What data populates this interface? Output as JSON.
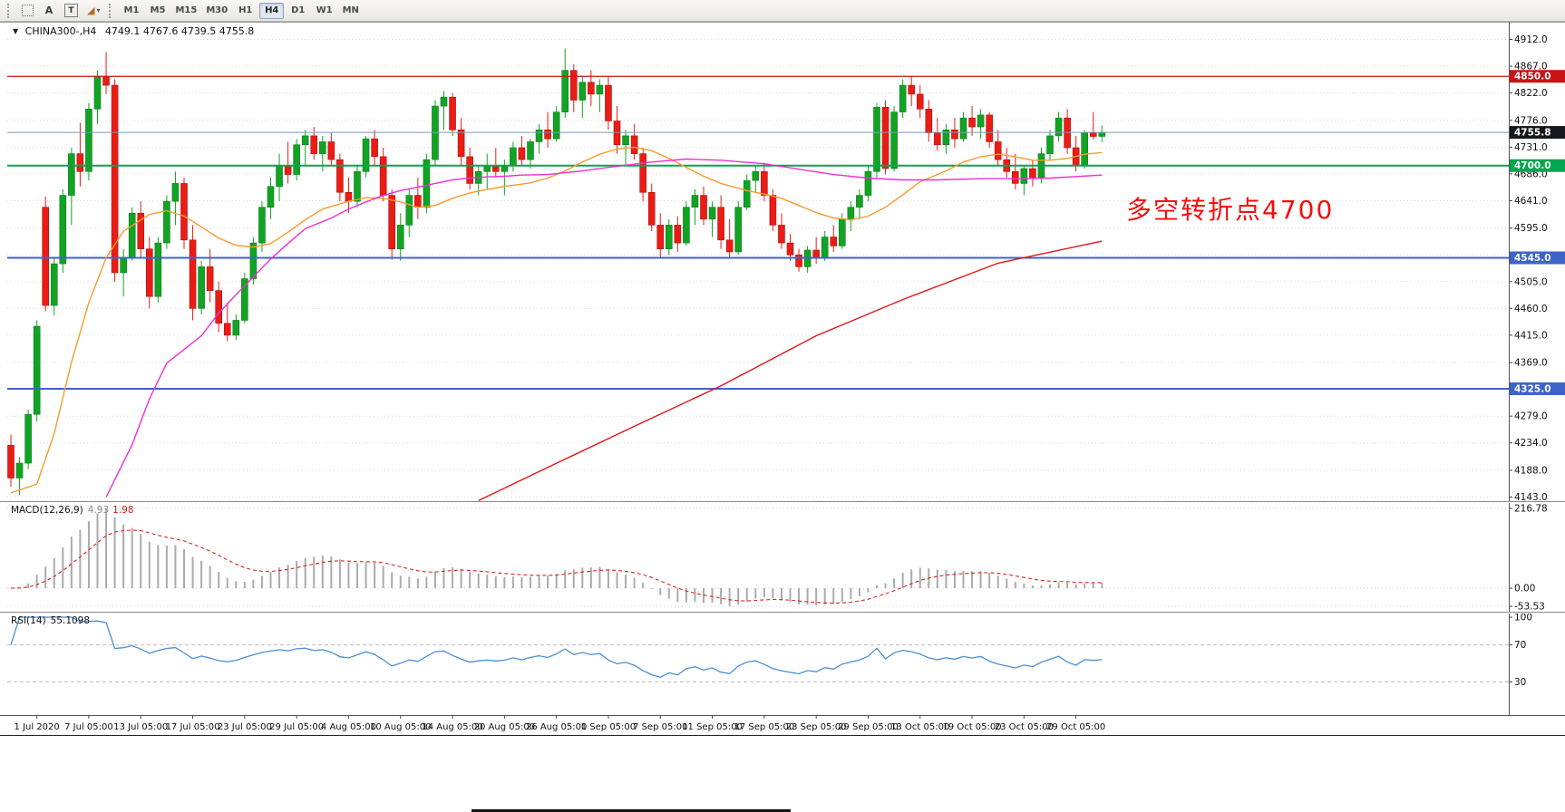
{
  "window": {
    "app": "MetaTrader chart window"
  },
  "icons": {
    "collapse": "▼",
    "caret": "▾",
    "shapes_glyph": "◢"
  },
  "toolbar": {
    "text_tool": "A",
    "label_tool": "T",
    "timeframes": [
      "M1",
      "M5",
      "M15",
      "M30",
      "H1",
      "H4",
      "D1",
      "W1",
      "MN"
    ],
    "active_timeframe": "H4"
  },
  "chart": {
    "title": "CHINA300-,H4",
    "ohlc": "4749.1 4767.6 4739.5 4755.8",
    "annotation": "多空转折点4700",
    "annotation_color": "#f60d0d"
  },
  "macd_label": {
    "name": "MACD(12,26,9)",
    "value": "4.93",
    "signal": "1.98"
  },
  "rsi_label": {
    "name": "RSI(14)",
    "value": "55.1098"
  },
  "chart_data": {
    "type": "candlestick",
    "symbol": "CHINA300-",
    "period": "H4",
    "current_ohlc": {
      "open": 4749.1,
      "high": 4767.6,
      "low": 4739.5,
      "close": 4755.8
    },
    "y_axis": {
      "min": 4143.0,
      "max": 4912.0,
      "labels": [
        4912.0,
        4867.0,
        4822.0,
        4776.0,
        4731.0,
        4686.0,
        4641.0,
        4595.0,
        4550.0,
        4505.0,
        4460.0,
        4415.0,
        4369.0,
        4324.0,
        4279.0,
        4234.0,
        4188.0,
        4143.0
      ]
    },
    "x_labels": [
      "1 Jul 2020",
      "7 Jul 05:00",
      "13 Jul 05:00",
      "17 Jul 05:00",
      "23 Jul 05:00",
      "29 Jul 05:00",
      "4 Aug 05:00",
      "10 Aug 05:00",
      "14 Aug 05:00",
      "20 Aug 05:00",
      "26 Aug 05:00",
      "1 Sep 05:00",
      "7 Sep 05:00",
      "11 Sep 05:00",
      "17 Sep 05:00",
      "23 Sep 05:00",
      "29 Sep 05:00",
      "13 Oct 05:00",
      "19 Oct 05:00",
      "23 Oct 05:00",
      "29 Oct 05:00"
    ],
    "label_start_bar": 3,
    "label_bar_step": 6,
    "candle_colors": {
      "up": "#12a324",
      "up_border": "#0c7d1e",
      "down": "#ea1c16",
      "down_border": "#a91410"
    },
    "candles": [
      [
        4230,
        4248,
        4160,
        4175
      ],
      [
        4175,
        4210,
        4147,
        4200
      ],
      [
        4200,
        4290,
        4190,
        4282
      ],
      [
        4282,
        4440,
        4270,
        4430
      ],
      [
        4630,
        4648,
        4455,
        4465
      ],
      [
        4465,
        4545,
        4448,
        4535
      ],
      [
        4535,
        4660,
        4520,
        4650
      ],
      [
        4650,
        4730,
        4600,
        4720
      ],
      [
        4720,
        4772,
        4665,
        4690
      ],
      [
        4690,
        4805,
        4675,
        4795
      ],
      [
        4795,
        4860,
        4770,
        4850
      ],
      [
        4850,
        4891,
        4820,
        4835
      ],
      [
        4835,
        4845,
        4505,
        4520
      ],
      [
        4520,
        4560,
        4480,
        4545
      ],
      [
        4545,
        4630,
        4540,
        4620
      ],
      [
        4620,
        4640,
        4545,
        4560
      ],
      [
        4560,
        4580,
        4460,
        4480
      ],
      [
        4480,
        4580,
        4470,
        4570
      ],
      [
        4570,
        4650,
        4560,
        4640
      ],
      [
        4640,
        4690,
        4600,
        4670
      ],
      [
        4670,
        4680,
        4560,
        4575
      ],
      [
        4575,
        4600,
        4440,
        4460
      ],
      [
        4460,
        4540,
        4450,
        4530
      ],
      [
        4530,
        4560,
        4470,
        4490
      ],
      [
        4490,
        4505,
        4420,
        4435
      ],
      [
        4435,
        4470,
        4405,
        4415
      ],
      [
        4415,
        4450,
        4407,
        4440
      ],
      [
        4440,
        4520,
        4435,
        4510
      ],
      [
        4510,
        4580,
        4500,
        4570
      ],
      [
        4570,
        4640,
        4555,
        4630
      ],
      [
        4630,
        4680,
        4610,
        4665
      ],
      [
        4665,
        4720,
        4640,
        4700
      ],
      [
        4700,
        4740,
        4670,
        4685
      ],
      [
        4685,
        4745,
        4675,
        4735
      ],
      [
        4735,
        4760,
        4700,
        4750
      ],
      [
        4750,
        4765,
        4710,
        4720
      ],
      [
        4720,
        4750,
        4690,
        4740
      ],
      [
        4740,
        4755,
        4700,
        4710
      ],
      [
        4710,
        4720,
        4640,
        4655
      ],
      [
        4655,
        4680,
        4620,
        4640
      ],
      [
        4640,
        4700,
        4630,
        4690
      ],
      [
        4690,
        4750,
        4680,
        4745
      ],
      [
        4745,
        4760,
        4700,
        4715
      ],
      [
        4715,
        4730,
        4640,
        4650
      ],
      [
        4650,
        4660,
        4542,
        4560
      ],
      [
        4560,
        4620,
        4540,
        4600
      ],
      [
        4600,
        4660,
        4580,
        4650
      ],
      [
        4650,
        4680,
        4610,
        4630
      ],
      [
        4630,
        4720,
        4620,
        4710
      ],
      [
        4710,
        4810,
        4700,
        4800
      ],
      [
        4800,
        4825,
        4760,
        4815
      ],
      [
        4815,
        4822,
        4750,
        4760
      ],
      [
        4760,
        4780,
        4700,
        4715
      ],
      [
        4715,
        4730,
        4660,
        4670
      ],
      [
        4670,
        4700,
        4650,
        4690
      ],
      [
        4690,
        4720,
        4660,
        4700
      ],
      [
        4700,
        4730,
        4680,
        4690
      ],
      [
        4690,
        4710,
        4650,
        4700
      ],
      [
        4700,
        4740,
        4690,
        4730
      ],
      [
        4730,
        4750,
        4700,
        4710
      ],
      [
        4710,
        4745,
        4695,
        4740
      ],
      [
        4740,
        4770,
        4720,
        4760
      ],
      [
        4760,
        4790,
        4730,
        4745
      ],
      [
        4745,
        4800,
        4740,
        4790
      ],
      [
        4790,
        4897,
        4780,
        4860
      ],
      [
        4860,
        4870,
        4790,
        4810
      ],
      [
        4810,
        4850,
        4780,
        4840
      ],
      [
        4840,
        4860,
        4800,
        4820
      ],
      [
        4820,
        4845,
        4790,
        4835
      ],
      [
        4835,
        4850,
        4760,
        4775
      ],
      [
        4775,
        4800,
        4720,
        4735
      ],
      [
        4735,
        4760,
        4700,
        4750
      ],
      [
        4750,
        4770,
        4710,
        4720
      ],
      [
        4720,
        4730,
        4640,
        4655
      ],
      [
        4655,
        4670,
        4590,
        4600
      ],
      [
        4600,
        4620,
        4545,
        4560
      ],
      [
        4560,
        4610,
        4550,
        4600
      ],
      [
        4600,
        4615,
        4555,
        4570
      ],
      [
        4570,
        4640,
        4565,
        4630
      ],
      [
        4630,
        4660,
        4600,
        4650
      ],
      [
        4650,
        4665,
        4600,
        4610
      ],
      [
        4610,
        4640,
        4580,
        4630
      ],
      [
        4630,
        4650,
        4560,
        4575
      ],
      [
        4575,
        4610,
        4545,
        4555
      ],
      [
        4555,
        4640,
        4550,
        4630
      ],
      [
        4630,
        4685,
        4625,
        4675
      ],
      [
        4675,
        4700,
        4655,
        4690
      ],
      [
        4690,
        4705,
        4640,
        4650
      ],
      [
        4650,
        4660,
        4590,
        4600
      ],
      [
        4600,
        4620,
        4560,
        4570
      ],
      [
        4570,
        4585,
        4540,
        4550
      ],
      [
        4550,
        4560,
        4522,
        4530
      ],
      [
        4530,
        4565,
        4520,
        4558
      ],
      [
        4558,
        4580,
        4535,
        4545
      ],
      [
        4545,
        4590,
        4540,
        4580
      ],
      [
        4580,
        4600,
        4555,
        4565
      ],
      [
        4565,
        4620,
        4560,
        4610
      ],
      [
        4610,
        4640,
        4590,
        4630
      ],
      [
        4630,
        4660,
        4610,
        4650
      ],
      [
        4650,
        4700,
        4640,
        4690
      ],
      [
        4690,
        4805,
        4680,
        4798
      ],
      [
        4798,
        4810,
        4685,
        4695
      ],
      [
        4695,
        4800,
        4690,
        4790
      ],
      [
        4790,
        4845,
        4780,
        4835
      ],
      [
        4835,
        4850,
        4800,
        4820
      ],
      [
        4820,
        4835,
        4780,
        4795
      ],
      [
        4795,
        4810,
        4740,
        4755
      ],
      [
        4755,
        4780,
        4725,
        4735
      ],
      [
        4735,
        4770,
        4720,
        4760
      ],
      [
        4760,
        4780,
        4730,
        4745
      ],
      [
        4745,
        4790,
        4740,
        4780
      ],
      [
        4780,
        4800,
        4750,
        4765
      ],
      [
        4765,
        4795,
        4745,
        4785
      ],
      [
        4785,
        4790,
        4730,
        4740
      ],
      [
        4740,
        4760,
        4700,
        4710
      ],
      [
        4710,
        4730,
        4680,
        4690
      ],
      [
        4690,
        4720,
        4660,
        4670
      ],
      [
        4670,
        4700,
        4650,
        4695
      ],
      [
        4695,
        4710,
        4665,
        4680
      ],
      [
        4680,
        4730,
        4670,
        4720
      ],
      [
        4720,
        4760,
        4710,
        4750
      ],
      [
        4750,
        4790,
        4740,
        4780
      ],
      [
        4780,
        4795,
        4720,
        4730
      ],
      [
        4730,
        4750,
        4690,
        4700
      ],
      [
        4700,
        4760,
        4695,
        4755
      ],
      [
        4755,
        4790,
        4744,
        4749
      ],
      [
        4749.1,
        4767.6,
        4739.5,
        4755.8
      ]
    ],
    "hlines": [
      {
        "price": 4850.0,
        "color": "#c81414",
        "width": 1.2,
        "badge": "4850.0",
        "badge_bg": "#c81414"
      },
      {
        "price": 4755.8,
        "color": "#7b96b8",
        "width": 1,
        "badge": "4755.8",
        "badge_bg": "#15181d"
      },
      {
        "price": 4700.0,
        "color": "#00a550",
        "width": 2,
        "badge": "4700.0",
        "badge_bg": "#00a550"
      },
      {
        "price": 4545.0,
        "color": "#3c64c8",
        "width": 2,
        "badge": "4545.0",
        "badge_bg": "#3c64c8"
      },
      {
        "price": 4325.0,
        "color": "#3c64c8",
        "width": 2,
        "badge": "4325.0",
        "badge_bg": "#3c64c8"
      }
    ],
    "moving_averages": [
      {
        "name": "ma-fast-orange",
        "color": "#f79b2e",
        "points": [
          [
            0,
            4150
          ],
          [
            3,
            4165
          ],
          [
            5,
            4250
          ],
          [
            7,
            4370
          ],
          [
            9,
            4470
          ],
          [
            11,
            4545
          ],
          [
            13,
            4590
          ],
          [
            16,
            4618
          ],
          [
            18,
            4624
          ],
          [
            20,
            4615
          ],
          [
            22,
            4597
          ],
          [
            24,
            4578
          ],
          [
            26,
            4566
          ],
          [
            28,
            4563
          ],
          [
            30,
            4569
          ],
          [
            32,
            4588
          ],
          [
            34,
            4609
          ],
          [
            36,
            4627
          ],
          [
            39,
            4640
          ],
          [
            41,
            4646
          ],
          [
            43,
            4645
          ],
          [
            45,
            4639
          ],
          [
            47,
            4630
          ],
          [
            49,
            4633
          ],
          [
            51,
            4645
          ],
          [
            53,
            4654
          ],
          [
            55,
            4660
          ],
          [
            57,
            4665
          ],
          [
            60,
            4671
          ],
          [
            62,
            4679
          ],
          [
            64,
            4691
          ],
          [
            66,
            4706
          ],
          [
            68,
            4719
          ],
          [
            70,
            4728
          ],
          [
            72,
            4731
          ],
          [
            74,
            4725
          ],
          [
            76,
            4712
          ],
          [
            78,
            4697
          ],
          [
            80,
            4682
          ],
          [
            82,
            4670
          ],
          [
            85,
            4658
          ],
          [
            87,
            4652
          ],
          [
            89,
            4645
          ],
          [
            91,
            4633
          ],
          [
            93,
            4621
          ],
          [
            95,
            4612
          ],
          [
            97,
            4609
          ],
          [
            99,
            4615
          ],
          [
            101,
            4630
          ],
          [
            103,
            4651
          ],
          [
            105,
            4673
          ],
          [
            108,
            4691
          ],
          [
            110,
            4706
          ],
          [
            112,
            4715
          ],
          [
            114,
            4719
          ],
          [
            116,
            4715
          ],
          [
            118,
            4709
          ],
          [
            120,
            4709
          ],
          [
            122,
            4712
          ],
          [
            124,
            4719
          ],
          [
            126,
            4722
          ]
        ]
      },
      {
        "name": "ma-medium-magenta",
        "color": "#ee2fd2",
        "points": [
          [
            11,
            4143
          ],
          [
            14,
            4231
          ],
          [
            16,
            4308
          ],
          [
            18,
            4368
          ],
          [
            22,
            4414
          ],
          [
            24,
            4452
          ],
          [
            26,
            4483
          ],
          [
            28,
            4513
          ],
          [
            30,
            4543
          ],
          [
            32,
            4569
          ],
          [
            34,
            4594
          ],
          [
            37,
            4612
          ],
          [
            39,
            4627
          ],
          [
            41,
            4639
          ],
          [
            43,
            4650
          ],
          [
            45,
            4658
          ],
          [
            47,
            4664
          ],
          [
            49,
            4670
          ],
          [
            51,
            4676
          ],
          [
            53,
            4679
          ],
          [
            55,
            4681
          ],
          [
            57,
            4682
          ],
          [
            59,
            4684
          ],
          [
            62,
            4685
          ],
          [
            66,
            4691
          ],
          [
            70,
            4699
          ],
          [
            74,
            4706
          ],
          [
            78,
            4711
          ],
          [
            82,
            4709
          ],
          [
            87,
            4703
          ],
          [
            91,
            4694
          ],
          [
            95,
            4685
          ],
          [
            99,
            4679
          ],
          [
            103,
            4676
          ],
          [
            107,
            4676
          ],
          [
            112,
            4678
          ],
          [
            116,
            4678
          ],
          [
            120,
            4679
          ],
          [
            126,
            4684
          ]
        ]
      },
      {
        "name": "ma-slow-red",
        "color": "#dd1616",
        "points": [
          [
            54,
            4137
          ],
          [
            62,
            4193
          ],
          [
            72,
            4262
          ],
          [
            82,
            4330
          ],
          [
            93,
            4414
          ],
          [
            103,
            4475
          ],
          [
            114,
            4536
          ],
          [
            126,
            4573
          ]
        ]
      }
    ],
    "macd": {
      "params": [
        12,
        26,
        9
      ],
      "axis_labels": [
        "216.78",
        "0.00",
        "-53.53"
      ],
      "histogram_color": "#ababab",
      "signal_color": "#d92525"
    },
    "rsi": {
      "period": 14,
      "current": 55.1098,
      "axis_labels": [
        "100",
        "70",
        "30"
      ],
      "levels": [
        70,
        30
      ],
      "color": "#4a8fd4"
    }
  }
}
